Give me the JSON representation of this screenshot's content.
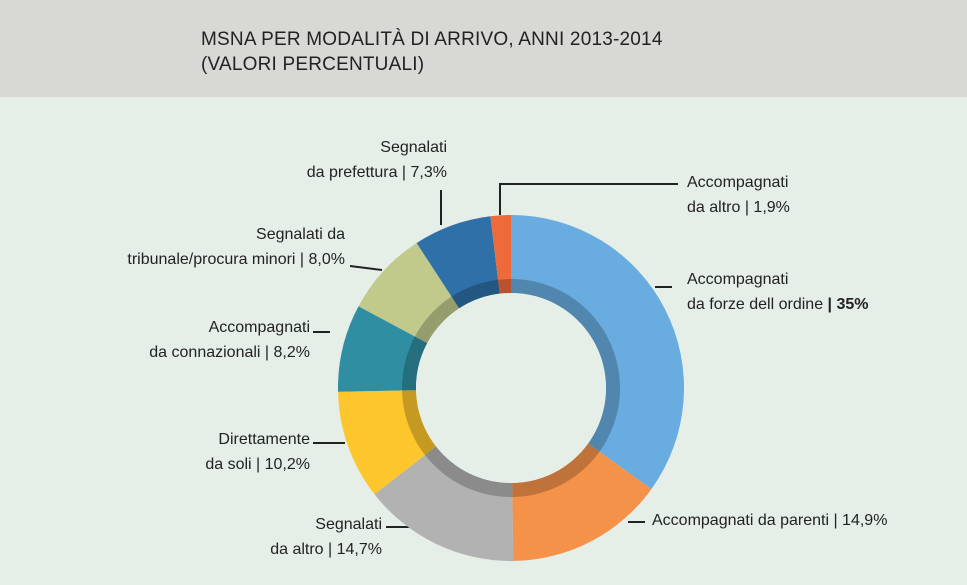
{
  "chart_data": {
    "type": "donut",
    "title": "MSNA PER MODALITÀ DI ARRIVO, ANNI 2013-2014",
    "subtitle": "(VALORI PERCENTUALI)",
    "categories": [
      "Accompagnati\nda forze dell ordine",
      "Accompagnati da parenti",
      "Segnalati\nda altro",
      "Direttamente\nda soli",
      "Accompagnati\nda connazionali",
      "Segnalati da\ntribunale/procura minori",
      "Segnalati\nda prefettura",
      "Accompagnati\nda altro"
    ],
    "values": [
      35,
      14.9,
      14.7,
      10.2,
      8.2,
      8.0,
      7.3,
      1.9
    ],
    "value_labels": [
      "35%",
      "14,9%",
      "14,7%",
      "10,2%",
      "8,2%",
      "8,0%",
      "7,3%",
      "1,9%"
    ],
    "colors": [
      "#68ace0",
      "#f5924a",
      "#b2b2b2",
      "#fcc62c",
      "#2f8ea2",
      "#c1c98b",
      "#2e70a7",
      "#ee6a3b"
    ]
  }
}
